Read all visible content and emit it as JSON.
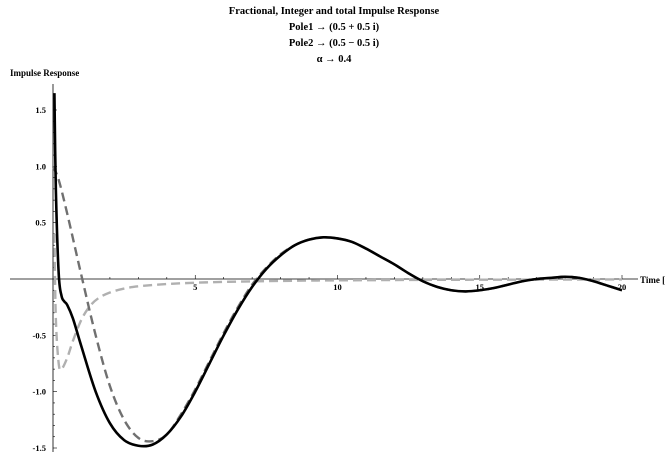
{
  "chart_data": {
    "type": "line",
    "title_lines": [
      "Fractional, Integer and total Impulse Response",
      "Pole1 → (0.5 + 0.5 i)",
      "Pole2 → (0.5 − 0.5 i)",
      "α → 0.4"
    ],
    "xlabel": "Time [",
    "ylabel": "Impulse Response",
    "xlim": [
      0,
      20
    ],
    "ylim": [
      -1.5,
      1.7
    ],
    "grid": false,
    "x_ticks": [
      5,
      10,
      15,
      20
    ],
    "x_tick_labels": [
      "5",
      "10",
      "15",
      "20"
    ],
    "y_ticks": [
      1.5,
      1.0,
      0.5,
      -0.5,
      -1.0,
      -1.5
    ],
    "y_tick_labels": [
      "1.5",
      "1.0",
      "0.5",
      "-0.5",
      "-1.0",
      "-1.5"
    ],
    "series": [
      {
        "style": "solid",
        "color": "#000000",
        "x": [
          0.05,
          0.1,
          0.2,
          0.3,
          0.4,
          0.5,
          0.7,
          1.0,
          1.5,
          2.0,
          2.5,
          3.0,
          3.5,
          4.0,
          4.5,
          5.0,
          5.5,
          6.0,
          6.5,
          7.0,
          7.5,
          8.0,
          8.5,
          9.0,
          9.5,
          10.0,
          10.5,
          11.0,
          11.5,
          12.0,
          12.5,
          13.0,
          13.5,
          14.0,
          14.5,
          15.0,
          15.5,
          16.0,
          16.5,
          17.0,
          17.5,
          18.0,
          18.5,
          19.0,
          19.5,
          20.0
        ],
        "y": [
          1.65,
          0.8,
          0.05,
          -0.15,
          -0.2,
          -0.23,
          -0.35,
          -0.6,
          -1.0,
          -1.28,
          -1.43,
          -1.48,
          -1.47,
          -1.38,
          -1.22,
          -1.0,
          -0.75,
          -0.5,
          -0.27,
          -0.07,
          0.09,
          0.21,
          0.3,
          0.35,
          0.37,
          0.36,
          0.33,
          0.27,
          0.2,
          0.13,
          0.05,
          -0.02,
          -0.07,
          -0.1,
          -0.11,
          -0.1,
          -0.08,
          -0.05,
          -0.02,
          0.0,
          0.01,
          0.02,
          0.01,
          -0.02,
          -0.06,
          -0.1
        ]
      },
      {
        "style": "dashed",
        "color": "#707070",
        "x": [
          0.0,
          0.2,
          0.5,
          1.0,
          1.5,
          2.0,
          2.5,
          3.0,
          3.5,
          4.0,
          4.5,
          5.0,
          5.5,
          6.0,
          6.5,
          7.0,
          7.5,
          8.0,
          8.5,
          9.0,
          9.5,
          10.0,
          10.5,
          11.0,
          11.5,
          12.0,
          12.5,
          13.0,
          13.5,
          14.0,
          14.5,
          15.0,
          15.5,
          16.0,
          16.5,
          17.0,
          17.5,
          18.0,
          18.5,
          19.0,
          19.5,
          20.0
        ],
        "y": [
          1.0,
          0.88,
          0.58,
          0.03,
          -0.5,
          -0.95,
          -1.25,
          -1.41,
          -1.44,
          -1.38,
          -1.2,
          -0.98,
          -0.73,
          -0.48,
          -0.25,
          -0.05,
          0.1,
          0.22,
          0.3,
          0.35,
          0.37,
          0.36,
          0.33,
          0.27,
          0.2,
          0.13,
          0.05,
          -0.02,
          -0.07,
          -0.1,
          -0.11,
          -0.1,
          -0.08,
          -0.05,
          -0.02,
          0.0,
          0.01,
          0.02,
          0.01,
          -0.02,
          -0.06,
          -0.1
        ]
      },
      {
        "style": "dashed",
        "color": "#b0b0b0",
        "x": [
          0.05,
          0.1,
          0.2,
          0.3,
          0.5,
          0.7,
          1.0,
          1.3,
          1.6,
          2.0,
          2.5,
          3.0,
          4.0,
          5.0,
          6.0,
          7.0,
          8.0,
          9.0,
          10.0,
          12.0,
          14.0,
          16.0,
          18.0,
          20.0
        ],
        "y": [
          0.4,
          -0.35,
          -0.75,
          -0.8,
          -0.7,
          -0.55,
          -0.36,
          -0.24,
          -0.17,
          -0.12,
          -0.085,
          -0.065,
          -0.045,
          -0.033,
          -0.026,
          -0.021,
          -0.017,
          -0.014,
          -0.012,
          -0.009,
          -0.007,
          -0.006,
          -0.005,
          -0.004
        ]
      }
    ]
  }
}
